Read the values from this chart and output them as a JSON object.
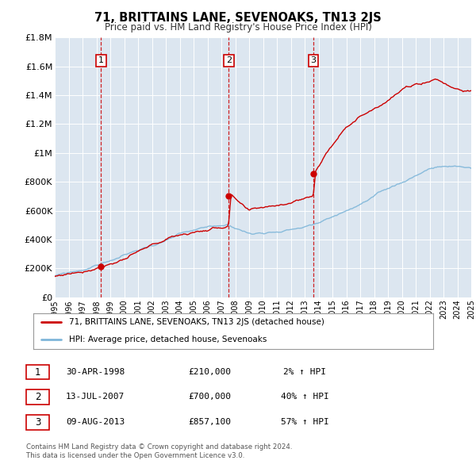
{
  "title": "71, BRITTAINS LANE, SEVENOAKS, TN13 2JS",
  "subtitle": "Price paid vs. HM Land Registry's House Price Index (HPI)",
  "bg_color": "#dce6f0",
  "red_line_color": "#cc0000",
  "blue_line_color": "#7eb6d9",
  "xmin": 1995,
  "xmax": 2025,
  "ymin": 0,
  "ymax": 1800000,
  "yticks": [
    0,
    200000,
    400000,
    600000,
    800000,
    1000000,
    1200000,
    1400000,
    1600000,
    1800000
  ],
  "ytick_labels": [
    "£0",
    "£200K",
    "£400K",
    "£600K",
    "£800K",
    "£1M",
    "£1.2M",
    "£1.4M",
    "£1.6M",
    "£1.8M"
  ],
  "xticks": [
    1995,
    1996,
    1997,
    1998,
    1999,
    2000,
    2001,
    2002,
    2003,
    2004,
    2005,
    2006,
    2007,
    2008,
    2009,
    2010,
    2011,
    2012,
    2013,
    2014,
    2015,
    2016,
    2017,
    2018,
    2019,
    2020,
    2021,
    2022,
    2023,
    2024,
    2025
  ],
  "sale_events": [
    {
      "num": 1,
      "year": 1998.33,
      "price": 210000
    },
    {
      "num": 2,
      "year": 2007.54,
      "price": 700000
    },
    {
      "num": 3,
      "year": 2013.62,
      "price": 857100
    }
  ],
  "legend_label_red": "71, BRITTAINS LANE, SEVENOAKS, TN13 2JS (detached house)",
  "legend_label_blue": "HPI: Average price, detached house, Sevenoaks",
  "footer_line1": "Contains HM Land Registry data © Crown copyright and database right 2024.",
  "footer_line2": "This data is licensed under the Open Government Licence v3.0.",
  "table_rows": [
    {
      "num": 1,
      "date": "30-APR-1998",
      "price": "£210,000",
      "pct": "2% ↑ HPI"
    },
    {
      "num": 2,
      "date": "13-JUL-2007",
      "price": "£700,000",
      "pct": "40% ↑ HPI"
    },
    {
      "num": 3,
      "date": "09-AUG-2013",
      "price": "£857,100",
      "pct": "57% ↑ HPI"
    }
  ]
}
